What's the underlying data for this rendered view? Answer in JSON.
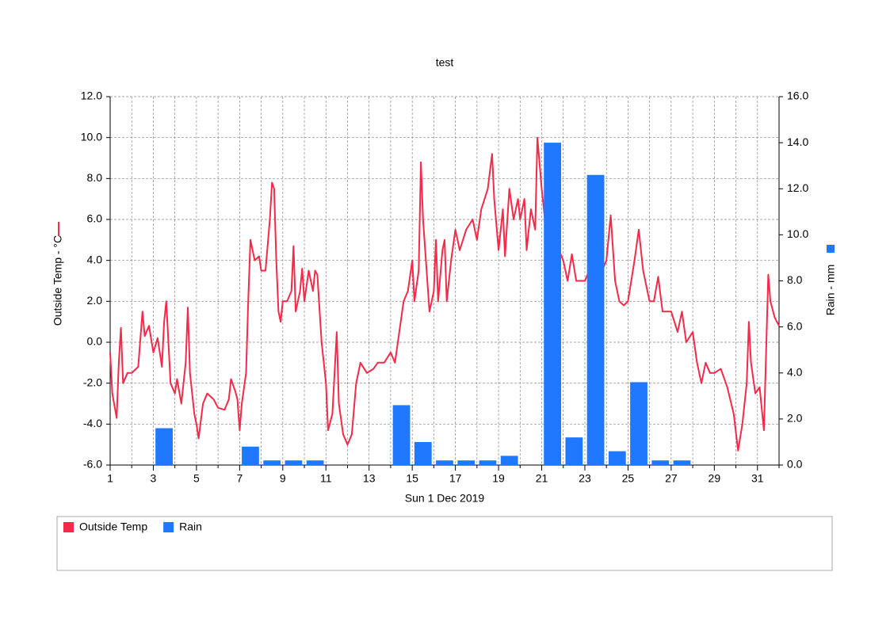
{
  "chart_data": {
    "type": "line-bar",
    "title": "test",
    "x_label": "Sun 1 Dec 2019",
    "y_label": "Outside Temp - °C",
    "y2_label": "Rain - mm",
    "xlim": [
      1,
      32
    ],
    "xticks": [
      1,
      3,
      5,
      7,
      9,
      11,
      13,
      15,
      17,
      19,
      21,
      23,
      25,
      27,
      29,
      31
    ],
    "xminorticks": [
      2,
      4,
      6,
      8,
      10,
      12,
      14,
      16,
      18,
      20,
      22,
      24,
      26,
      28,
      30,
      32
    ],
    "ylim": [
      -6,
      12
    ],
    "yticks": [
      {
        "value": -6,
        "label": "-6.0"
      },
      {
        "value": -4,
        "label": "-4.0"
      },
      {
        "value": -2,
        "label": "-2.0"
      },
      {
        "value": 0,
        "label": "0.0"
      },
      {
        "value": 2,
        "label": "2.0"
      },
      {
        "value": 4,
        "label": "4.0"
      },
      {
        "value": 6,
        "label": "6.0"
      },
      {
        "value": 8,
        "label": "8.0"
      },
      {
        "value": 10,
        "label": "10.0"
      },
      {
        "value": 12,
        "label": "12.0"
      }
    ],
    "y2lim": [
      0,
      16
    ],
    "y2ticks": [
      {
        "value": 0,
        "label": "0.0"
      },
      {
        "value": 2,
        "label": "2.0"
      },
      {
        "value": 4,
        "label": "4.0"
      },
      {
        "value": 6,
        "label": "6.0"
      },
      {
        "value": 8,
        "label": "8.0"
      },
      {
        "value": 10,
        "label": "10.0"
      },
      {
        "value": 12,
        "label": "12.0"
      },
      {
        "value": 14,
        "label": "14.0"
      },
      {
        "value": 16,
        "label": "16.0"
      }
    ],
    "grid": true,
    "series": [
      {
        "name": "Outside Temp",
        "type": "line",
        "color": "#f5294a",
        "x": [
          1.0,
          1.1,
          1.3,
          1.4,
          1.5,
          1.6,
          1.8,
          2.0,
          2.3,
          2.5,
          2.6,
          2.8,
          3.0,
          3.2,
          3.4,
          3.5,
          3.6,
          3.7,
          3.8,
          4.0,
          4.1,
          4.3,
          4.5,
          4.6,
          4.7,
          4.9,
          5.0,
          5.1,
          5.3,
          5.5,
          5.8,
          6.0,
          6.3,
          6.5,
          6.6,
          6.8,
          6.9,
          7.0,
          7.1,
          7.3,
          7.4,
          7.5,
          7.7,
          7.9,
          8.0,
          8.2,
          8.4,
          8.5,
          8.6,
          8.7,
          8.8,
          8.9,
          9.0,
          9.2,
          9.4,
          9.5,
          9.6,
          9.8,
          9.9,
          10.0,
          10.2,
          10.4,
          10.5,
          10.6,
          10.8,
          11.0,
          11.1,
          11.3,
          11.5,
          11.6,
          11.8,
          12.0,
          12.2,
          12.4,
          12.6,
          12.9,
          13.2,
          13.4,
          13.7,
          14.0,
          14.2,
          14.4,
          14.6,
          14.8,
          15.0,
          15.1,
          15.3,
          15.4,
          15.5,
          15.6,
          15.8,
          16.0,
          16.1,
          16.2,
          16.4,
          16.5,
          16.6,
          16.8,
          17.0,
          17.2,
          17.5,
          17.8,
          18.0,
          18.2,
          18.5,
          18.7,
          18.8,
          19.0,
          19.2,
          19.3,
          19.5,
          19.7,
          19.9,
          20.0,
          20.2,
          20.3,
          20.5,
          20.7,
          20.8,
          21.0,
          21.2,
          21.4,
          21.6,
          21.8,
          22.0,
          22.2,
          22.4,
          22.6,
          22.8,
          23.0,
          23.2,
          23.4,
          23.6,
          23.8,
          24.0,
          24.2,
          24.4,
          24.6,
          24.8,
          25.0,
          25.3,
          25.5,
          25.7,
          26.0,
          26.2,
          26.4,
          26.6,
          26.8,
          27.0,
          27.3,
          27.5,
          27.7,
          28.0,
          28.2,
          28.4,
          28.6,
          28.8,
          29.0,
          29.3,
          29.6,
          29.9,
          30.1,
          30.3,
          30.5,
          30.6,
          30.7,
          30.9,
          31.1,
          31.3,
          31.5,
          31.6,
          31.8,
          32.0
        ],
        "values": [
          -0.5,
          -2.5,
          -3.7,
          -1.0,
          0.7,
          -2.0,
          -1.5,
          -1.5,
          -1.2,
          1.5,
          0.3,
          0.8,
          -0.5,
          0.2,
          -1.2,
          1.0,
          2.0,
          0.0,
          -2.0,
          -2.5,
          -1.8,
          -3.0,
          -1.0,
          1.7,
          -1.5,
          -3.5,
          -4.0,
          -4.7,
          -3.0,
          -2.5,
          -2.8,
          -3.2,
          -3.3,
          -2.8,
          -1.8,
          -2.4,
          -2.8,
          -4.3,
          -3.0,
          -1.5,
          2.0,
          5.0,
          4.0,
          4.2,
          3.5,
          3.5,
          6.0,
          7.8,
          7.5,
          4.0,
          1.5,
          1.0,
          2.0,
          2.0,
          2.5,
          4.7,
          1.5,
          2.5,
          3.6,
          2.0,
          3.5,
          2.5,
          3.5,
          3.3,
          0.0,
          -2.0,
          -4.3,
          -3.5,
          0.5,
          -3.0,
          -4.5,
          -5.0,
          -4.5,
          -2.0,
          -1.0,
          -1.5,
          -1.3,
          -1.0,
          -1.0,
          -0.5,
          -1.0,
          0.5,
          2.0,
          2.5,
          4.0,
          2.0,
          3.5,
          8.8,
          6.0,
          4.5,
          1.5,
          2.5,
          5.0,
          2.0,
          4.5,
          5.0,
          2.0,
          4.0,
          5.5,
          4.5,
          5.5,
          6.0,
          5.0,
          6.5,
          7.5,
          9.2,
          7.0,
          4.5,
          6.5,
          4.2,
          7.5,
          6.0,
          7.0,
          6.0,
          7.0,
          4.5,
          6.5,
          5.5,
          10.0,
          7.5,
          5.5,
          6.0,
          7.8,
          4.5,
          4.0,
          3.0,
          4.3,
          3.0,
          3.0,
          3.0,
          3.5,
          4.5,
          4.0,
          3.5,
          4.0,
          6.2,
          3.0,
          2.0,
          1.8,
          2.0,
          4.0,
          5.5,
          3.5,
          2.0,
          2.0,
          3.2,
          1.5,
          1.5,
          1.5,
          0.5,
          1.5,
          0.0,
          0.5,
          -1.0,
          -2.0,
          -1.0,
          -1.5,
          -1.5,
          -1.3,
          -2.2,
          -3.5,
          -5.3,
          -4.0,
          -2.0,
          1.0,
          -1.0,
          -2.5,
          -2.2,
          -4.3,
          3.3,
          2.0,
          1.2,
          0.8
        ]
      },
      {
        "name": "Rain",
        "type": "bar",
        "axis": "y2",
        "color": "#1f78ff",
        "x": [
          3,
          7,
          8,
          9,
          10,
          14,
          15,
          16,
          17,
          18,
          19,
          21,
          22,
          23,
          24,
          25,
          26,
          27
        ],
        "values": [
          1.6,
          0.8,
          0.2,
          0.2,
          0.2,
          2.6,
          1.0,
          0.2,
          0.2,
          0.2,
          0.4,
          14.0,
          1.2,
          12.6,
          0.6,
          3.6,
          0.2,
          0.2
        ]
      }
    ]
  }
}
